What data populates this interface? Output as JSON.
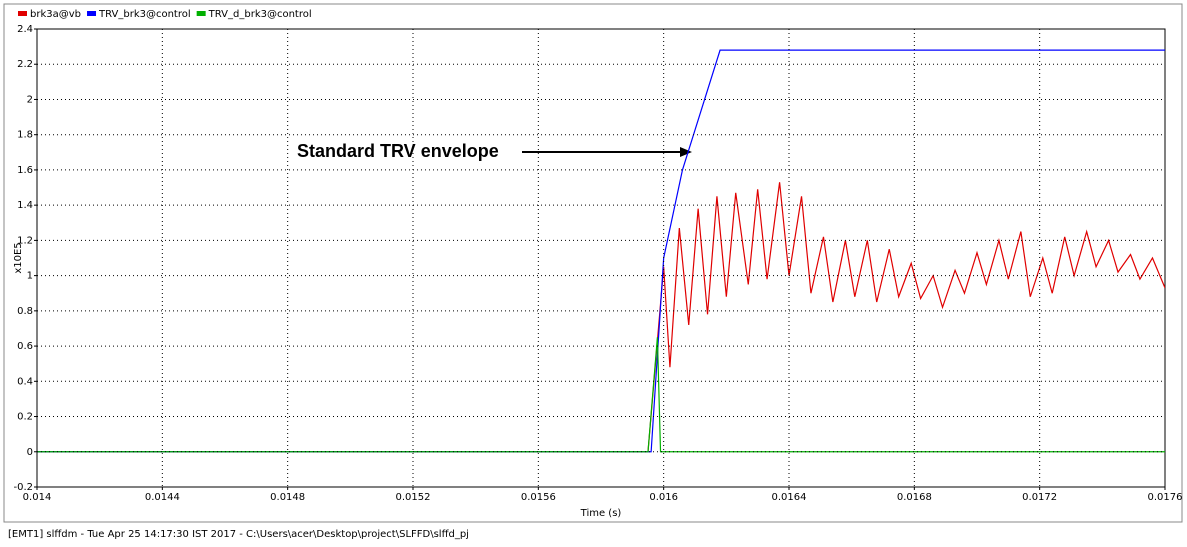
{
  "chart_data": {
    "type": "line",
    "y_label": "x10E5",
    "x_label": "Time (s)",
    "annotation": "Standard TRV envelope",
    "footer": "[EMT1] slffdm - Tue Apr 25 14:17:30 IST 2017 - C:\\Users\\acer\\Desktop\\project\\SLFFD\\slffd_pj",
    "xlim": [
      0.014,
      0.0176
    ],
    "xticks": [
      0.014,
      0.0144,
      0.0148,
      0.0152,
      0.0156,
      0.016,
      0.0164,
      0.0168,
      0.0172,
      0.0176
    ],
    "ylim": [
      -0.2,
      2.4
    ],
    "yticks": [
      -0.2,
      0,
      0.2,
      0.4,
      0.6,
      0.8,
      1,
      1.2,
      1.4,
      1.6,
      1.8,
      2,
      2.2,
      2.4
    ],
    "grid": true,
    "series": [
      {
        "name": "brk3a@vb",
        "color": "#e00000",
        "x": [
          0.014,
          0.01595,
          0.016,
          0.01602,
          0.01605,
          0.01608,
          0.01611,
          0.01614,
          0.01617,
          0.0162,
          0.01623,
          0.01627,
          0.0163,
          0.01633,
          0.01637,
          0.0164,
          0.01644,
          0.01647,
          0.01651,
          0.01654,
          0.01658,
          0.01661,
          0.01665,
          0.01668,
          0.01672,
          0.01675,
          0.01679,
          0.01682,
          0.01686,
          0.01689,
          0.01693,
          0.01696,
          0.017,
          0.01703,
          0.01707,
          0.0171,
          0.01714,
          0.01717,
          0.01721,
          0.01724,
          0.01728,
          0.01731,
          0.01735,
          0.01738,
          0.01742,
          0.01745,
          0.01749,
          0.01752,
          0.01756,
          0.0176
        ],
        "values": [
          0,
          0,
          1.05,
          0.48,
          1.27,
          0.72,
          1.38,
          0.78,
          1.45,
          0.88,
          1.47,
          0.95,
          1.49,
          0.98,
          1.53,
          1.0,
          1.45,
          0.9,
          1.22,
          0.85,
          1.2,
          0.88,
          1.2,
          0.85,
          1.15,
          0.88,
          1.07,
          0.87,
          1.0,
          0.82,
          1.03,
          0.9,
          1.13,
          0.95,
          1.2,
          0.98,
          1.25,
          0.88,
          1.1,
          0.9,
          1.22,
          1.0,
          1.25,
          1.05,
          1.2,
          1.02,
          1.12,
          0.98,
          1.1,
          0.93
        ]
      },
      {
        "name": "TRV_brk3@control",
        "color": "#0000ff",
        "x": [
          0.014,
          0.01596,
          0.016,
          0.01606,
          0.01618,
          0.0176
        ],
        "values": [
          0,
          0,
          1.1,
          1.6,
          2.28,
          2.28
        ]
      },
      {
        "name": "TRV_d_brk3@control",
        "color": "#00b000",
        "x": [
          0.014,
          0.01595,
          0.01598,
          0.01599,
          0.0176
        ],
        "values": [
          0,
          0,
          0.65,
          0,
          0
        ]
      }
    ]
  }
}
